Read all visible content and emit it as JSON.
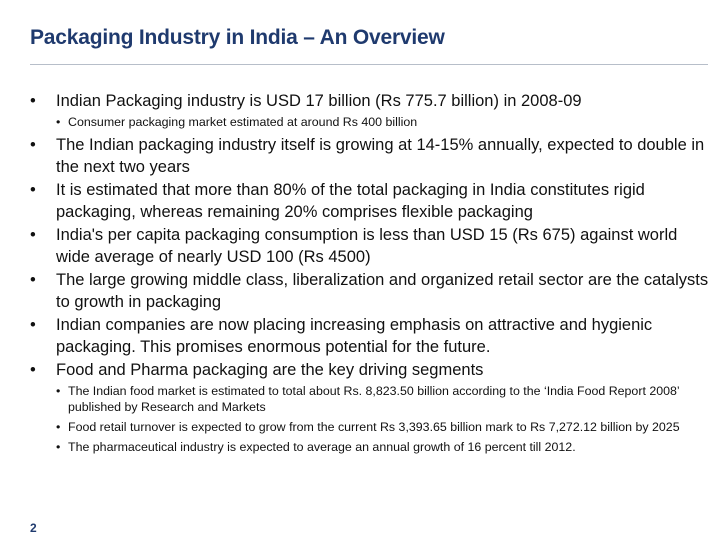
{
  "slide": {
    "title": "Packaging Industry in India – An Overview",
    "page_number": "2",
    "colors": {
      "title": "#1f3a6e",
      "text": "#111111",
      "rule": "#b7bec9"
    }
  },
  "bullets": [
    {
      "text": "Indian Packaging industry is USD 17 billion (Rs 775.7 billion) in 2008-09",
      "sub": [
        "Consumer packaging market estimated at around Rs 400 billion"
      ]
    },
    {
      "text": "The Indian packaging industry itself is growing at 14-15% annually, expected to double in the next two years",
      "sub": []
    },
    {
      "text": "It is estimated that more than 80% of the total packaging in India constitutes rigid packaging, whereas remaining 20% comprises flexible packaging",
      "sub": []
    },
    {
      "text": "India's per capita packaging consumption is less than USD 15 (Rs 675) against world wide average of nearly USD 100 (Rs 4500)",
      "sub": []
    },
    {
      "text": "The large growing middle class, liberalization and organized retail sector are the catalysts to growth in packaging",
      "sub": []
    },
    {
      "text": "Indian companies are now placing increasing emphasis on attractive and hygienic packaging. This promises enormous potential for the future.",
      "sub": []
    },
    {
      "text": "Food and Pharma packaging are the key driving segments",
      "sub": [
        "The Indian food market is estimated to total about Rs. 8,823.50 billion according to the ‘India Food Report 2008’ published by Research and Markets",
        "Food retail turnover is expected to grow from the current Rs 3,393.65 billion mark to Rs 7,272.12 billion by 2025",
        "The pharmaceutical industry is expected to average an annual growth of 16 percent till 2012."
      ]
    }
  ]
}
